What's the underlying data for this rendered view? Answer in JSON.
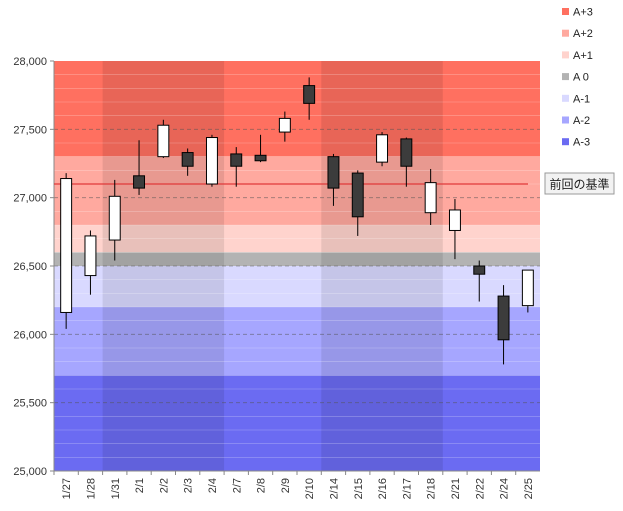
{
  "chart_data": {
    "type": "candlestick",
    "ylim": [
      25000,
      28000
    ],
    "y_ticks": [
      25000,
      25500,
      26000,
      26500,
      27000,
      27500,
      28000
    ],
    "y_tick_labels": [
      "25,000",
      "25,500",
      "26,000",
      "26,500",
      "27,000",
      "27,500",
      "28,000"
    ],
    "categories": [
      "1/27",
      "1/28",
      "1/31",
      "2/1",
      "2/2",
      "2/3",
      "2/4",
      "2/7",
      "2/8",
      "2/9",
      "2/10",
      "2/14",
      "2/15",
      "2/16",
      "2/17",
      "2/18",
      "2/21",
      "2/22",
      "2/24",
      "2/25"
    ],
    "ohlc": [
      {
        "date": "1/27",
        "open": 26160,
        "high": 27180,
        "low": 26040,
        "close": 27140
      },
      {
        "date": "1/28",
        "open": 26430,
        "high": 26760,
        "low": 26290,
        "close": 26720
      },
      {
        "date": "1/31",
        "open": 26690,
        "high": 27130,
        "low": 26540,
        "close": 27010
      },
      {
        "date": "2/1",
        "open": 27160,
        "high": 27420,
        "low": 27020,
        "close": 27070
      },
      {
        "date": "2/2",
        "open": 27300,
        "high": 27570,
        "low": 27290,
        "close": 27530
      },
      {
        "date": "2/3",
        "open": 27330,
        "high": 27360,
        "low": 27160,
        "close": 27230
      },
      {
        "date": "2/4",
        "open": 27100,
        "high": 27460,
        "low": 27080,
        "close": 27440
      },
      {
        "date": "2/7",
        "open": 27320,
        "high": 27370,
        "low": 27080,
        "close": 27230
      },
      {
        "date": "2/8",
        "open": 27310,
        "high": 27460,
        "low": 27260,
        "close": 27270
      },
      {
        "date": "2/9",
        "open": 27480,
        "high": 27630,
        "low": 27410,
        "close": 27580
      },
      {
        "date": "2/10",
        "open": 27820,
        "high": 27880,
        "low": 27570,
        "close": 27690
      },
      {
        "date": "2/14",
        "open": 27300,
        "high": 27320,
        "low": 26940,
        "close": 27070
      },
      {
        "date": "2/15",
        "open": 27180,
        "high": 27200,
        "low": 26720,
        "close": 26860
      },
      {
        "date": "2/16",
        "open": 27260,
        "high": 27480,
        "low": 27230,
        "close": 27460
      },
      {
        "date": "2/17",
        "open": 27430,
        "high": 27440,
        "low": 27080,
        "close": 27230
      },
      {
        "date": "2/18",
        "open": 26890,
        "high": 27210,
        "low": 26800,
        "close": 27110
      },
      {
        "date": "2/21",
        "open": 26760,
        "high": 26990,
        "low": 26550,
        "close": 26910
      },
      {
        "date": "2/22",
        "open": 26500,
        "high": 26540,
        "low": 26240,
        "close": 26440
      },
      {
        "date": "2/24",
        "open": 26280,
        "high": 26360,
        "low": 25780,
        "close": 25960
      },
      {
        "date": "2/25",
        "open": 26210,
        "high": 26470,
        "low": 26160,
        "close": 26470
      }
    ],
    "reference_line": {
      "value": 27100,
      "label": "前回の基準",
      "color": "#e03a3a"
    },
    "bands": [
      {
        "label": "A+3",
        "from": 27300,
        "to": 28000,
        "color": "#ff7060"
      },
      {
        "label": "A+2",
        "from": 26800,
        "to": 27300,
        "color": "#ffa99f"
      },
      {
        "label": "A+1",
        "from": 26600,
        "to": 26800,
        "color": "#ffd3cd"
      },
      {
        "label": "A 0",
        "from": 26500,
        "to": 26600,
        "color": "#b3b3b3"
      },
      {
        "label": "A-1",
        "from": 26200,
        "to": 26500,
        "color": "#d9d9ff"
      },
      {
        "label": "A-2",
        "from": 25700,
        "to": 26200,
        "color": "#a6a6ff"
      },
      {
        "label": "A-3",
        "from": 25000,
        "to": 25700,
        "color": "#6b6bf2"
      }
    ],
    "legend": [
      {
        "label": "A+3",
        "color": "#ff7060"
      },
      {
        "label": "A+2",
        "color": "#ffa99f"
      },
      {
        "label": "A+1",
        "color": "#ffd3cd"
      },
      {
        "label": "A 0",
        "color": "#b3b3b3"
      },
      {
        "label": "A-1",
        "color": "#d9d9ff"
      },
      {
        "label": "A-2",
        "color": "#a6a6ff"
      },
      {
        "label": "A-3",
        "color": "#6b6bf2"
      }
    ],
    "legend_position": "top-right",
    "week_shading": "alternate",
    "grid": true,
    "up_color": "#ffffff",
    "down_color": "#3c3c3c"
  }
}
